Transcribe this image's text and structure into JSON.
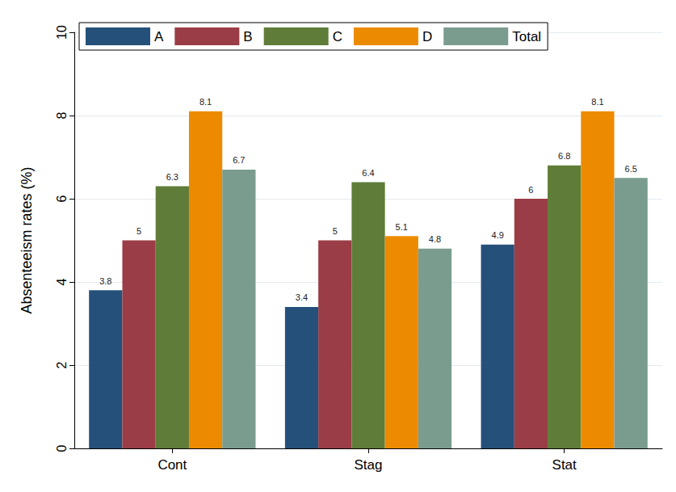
{
  "chart_data": {
    "type": "bar",
    "categories": [
      "Cont",
      "Stag",
      "Stat"
    ],
    "series": [
      {
        "name": "A",
        "color": "#25507a",
        "values": [
          3.8,
          3.4,
          4.9
        ]
      },
      {
        "name": "B",
        "color": "#9b3d46",
        "values": [
          5,
          5,
          6
        ]
      },
      {
        "name": "C",
        "color": "#5f7d38",
        "values": [
          6.3,
          6.4,
          6.8
        ]
      },
      {
        "name": "D",
        "color": "#ec8b00",
        "values": [
          8.1,
          5.1,
          8.1
        ]
      },
      {
        "name": "Total",
        "color": "#7a9c8e",
        "values": [
          6.7,
          4.8,
          6.5
        ]
      }
    ],
    "ylabel": "Absenteeism rates (%)",
    "ylim": [
      0,
      10
    ],
    "yticks": [
      0,
      2,
      4,
      6,
      8,
      10
    ],
    "grid": true,
    "data_labels": true,
    "legend": "top"
  }
}
